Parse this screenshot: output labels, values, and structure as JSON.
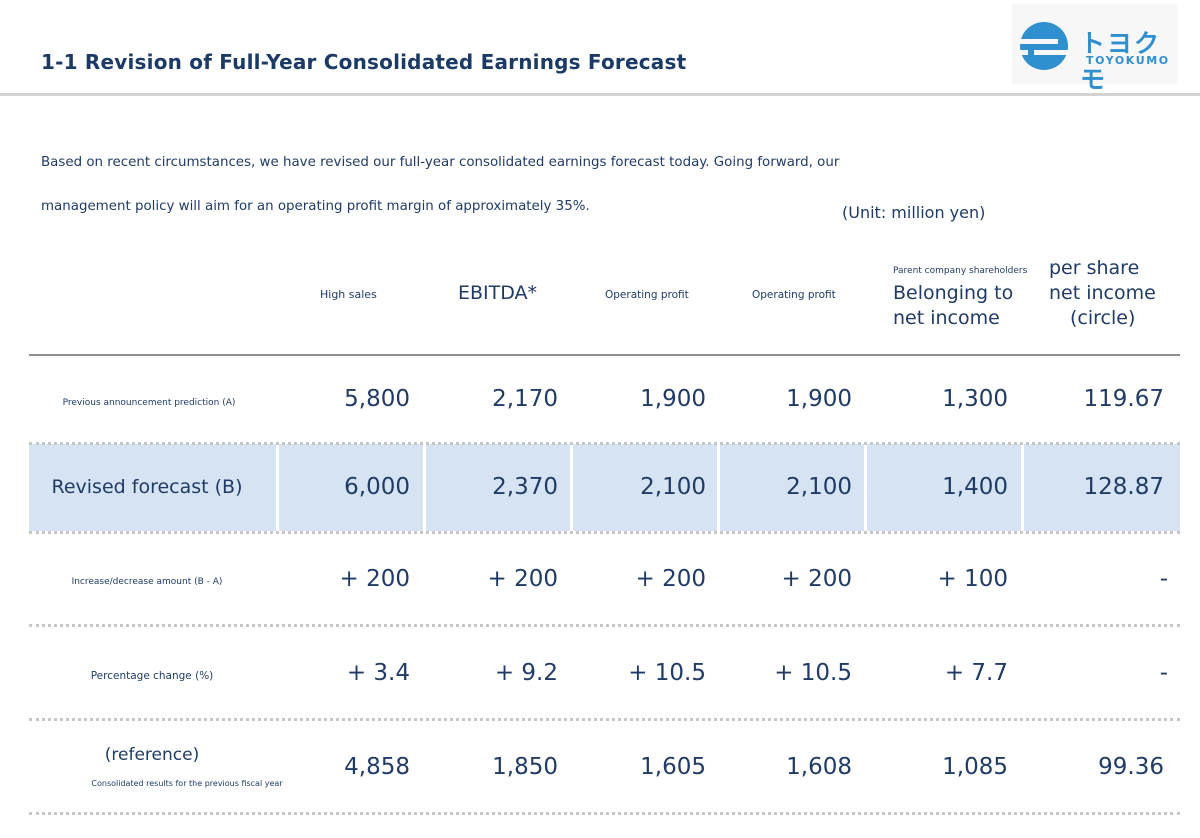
{
  "title": "1-1 Revision of Full-Year Consolidated Earnings Forecast",
  "logo": {
    "kana": "トヨクモ",
    "latin": "TOYOKUMO",
    "icon": "cloud-logo-icon",
    "color": "#2f8fcf"
  },
  "intro": {
    "line1": "Based on recent circumstances, we have revised our full-year consolidated earnings forecast today. Going forward, our",
    "line2": "management policy will aim for an operating profit margin of approximately 35%."
  },
  "unit": "(Unit: million yen)",
  "headers": {
    "col1": "High sales",
    "col2": "EBITDA*",
    "col3": "Operating profit",
    "col4": "Operating profit",
    "col5_small": "Parent company shareholders",
    "col5_line1": "Belonging to",
    "col5_line2": "net income",
    "col6_line1": "per share",
    "col6_line2": "net income",
    "col6_line3": "(circle)"
  },
  "rows": [
    {
      "label": "Previous announcement prediction (A)",
      "values": [
        "5,800",
        "2,170",
        "1,900",
        "1,900",
        "1,300",
        "119.67"
      ]
    },
    {
      "label": "Revised forecast (B)",
      "values": [
        "6,000",
        "2,370",
        "2,100",
        "2,100",
        "1,400",
        "128.87"
      ]
    },
    {
      "label": "Increase/decrease amount (B - A)",
      "values": [
        "+ 200",
        "+ 200",
        "+ 200",
        "+ 200",
        "+ 100",
        "-"
      ]
    },
    {
      "label": "Percentage change (%)",
      "values": [
        "+ 3.4",
        "+ 9.2",
        "+ 10.5",
        "+ 10.5",
        "+ 7.7",
        "-"
      ]
    },
    {
      "label_main": "(reference)",
      "label_sub": "Consolidated results for the previous fiscal year",
      "values": [
        "4,858",
        "1,850",
        "1,605",
        "1,608",
        "1,085",
        "99.36"
      ]
    }
  ],
  "colors": {
    "text": "#1f3b66",
    "highlight": "#d5e3f2"
  }
}
